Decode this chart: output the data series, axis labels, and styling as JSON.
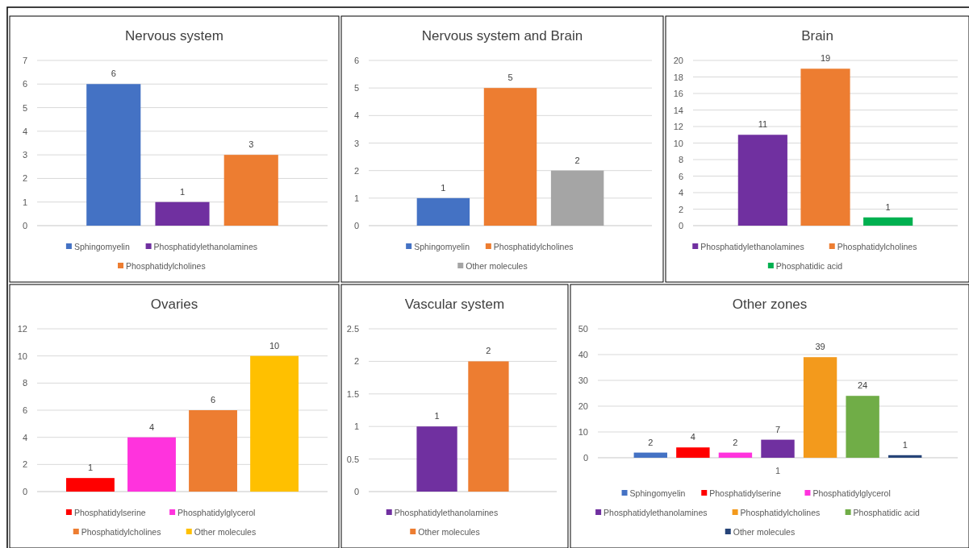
{
  "chart_data": [
    {
      "type": "bar",
      "title": "Nervous system",
      "categories": [
        null
      ],
      "series": [
        {
          "name": "Sphingomyelin",
          "color": "#4472c4",
          "values": [
            6
          ]
        },
        {
          "name": "Phosphatidylethanolamines",
          "color": "#7030a0",
          "values": [
            1
          ]
        },
        {
          "name": "Phosphatidylcholines",
          "color": "#ed7d31",
          "values": [
            3
          ]
        }
      ],
      "ylim": [
        0,
        7
      ],
      "yticks": [
        0,
        1,
        2,
        3,
        4,
        5,
        6,
        7
      ],
      "grid": "y",
      "legend": "bottom",
      "data_labels": true
    },
    {
      "type": "bar",
      "title": "Nervous system and Brain",
      "categories": [
        null
      ],
      "series": [
        {
          "name": "Sphingomyelin",
          "color": "#4472c4",
          "values": [
            1
          ]
        },
        {
          "name": "Phosphatidylcholines",
          "color": "#ed7d31",
          "values": [
            5
          ]
        },
        {
          "name": "Other molecules",
          "color": "#a5a5a5",
          "values": [
            2
          ]
        }
      ],
      "ylim": [
        0,
        6
      ],
      "yticks": [
        0,
        1,
        2,
        3,
        4,
        5,
        6
      ],
      "grid": "y",
      "legend": "bottom",
      "data_labels": true
    },
    {
      "type": "bar",
      "title": "Brain",
      "categories": [
        null
      ],
      "series": [
        {
          "name": "Phosphatidylethanolamines",
          "color": "#7030a0",
          "values": [
            11
          ]
        },
        {
          "name": "Phosphatidylcholines",
          "color": "#ed7d31",
          "values": [
            19
          ]
        },
        {
          "name": "Phosphatidic acid",
          "color": "#00b050",
          "values": [
            1
          ]
        }
      ],
      "ylim": [
        0,
        20
      ],
      "yticks": [
        0,
        2,
        4,
        6,
        8,
        10,
        12,
        14,
        16,
        18,
        20
      ],
      "grid": "y",
      "legend": "bottom",
      "data_labels": true
    },
    {
      "type": "bar",
      "title": "Ovaries",
      "categories": [
        null
      ],
      "series": [
        {
          "name": "Phosphatidylserine",
          "color": "#ff0000",
          "values": [
            1
          ]
        },
        {
          "name": "Phosphatidylglycerol",
          "color": "#ff33dd",
          "values": [
            4
          ]
        },
        {
          "name": "Phosphatidylcholines",
          "color": "#ed7d31",
          "values": [
            6
          ]
        },
        {
          "name": "Other molecules",
          "color": "#ffc000",
          "values": [
            10
          ]
        }
      ],
      "ylim": [
        0,
        12
      ],
      "yticks": [
        0,
        2,
        4,
        6,
        8,
        10,
        12
      ],
      "grid": "y",
      "legend": "bottom",
      "data_labels": true
    },
    {
      "type": "bar",
      "title": "Vascular system",
      "categories": [
        null
      ],
      "series": [
        {
          "name": "Phosphatidylethanolamines",
          "color": "#7030a0",
          "values": [
            1
          ]
        },
        {
          "name": "Other molecules",
          "color": "#ed7d31",
          "values": [
            2
          ]
        }
      ],
      "ylim": [
        0,
        2.5
      ],
      "yticks": [
        0,
        0.5,
        1,
        1.5,
        2,
        2.5
      ],
      "grid": "y",
      "legend": "bottom",
      "data_labels": true
    },
    {
      "type": "bar",
      "title": "Other zones",
      "categories": [
        "1"
      ],
      "series": [
        {
          "name": "Sphingomyelin",
          "color": "#4472c4",
          "values": [
            2
          ]
        },
        {
          "name": "Phosphatidylserine",
          "color": "#ff0000",
          "values": [
            4
          ]
        },
        {
          "name": "Phosphatidylglycerol",
          "color": "#ff33dd",
          "values": [
            2
          ]
        },
        {
          "name": "Phosphatidylethanolamines",
          "color": "#7030a0",
          "values": [
            7
          ]
        },
        {
          "name": "Phosphatidylcholines",
          "color": "#f39a1c",
          "values": [
            39
          ]
        },
        {
          "name": "Phosphatidic acid",
          "color": "#70ad47",
          "values": [
            24
          ]
        },
        {
          "name": "Other molecules",
          "color": "#264478",
          "values": [
            1
          ]
        }
      ],
      "ylim": [
        0,
        50
      ],
      "yticks": [
        0,
        10,
        20,
        30,
        40,
        50
      ],
      "grid": "y",
      "legend": "bottom",
      "data_labels": true
    }
  ]
}
